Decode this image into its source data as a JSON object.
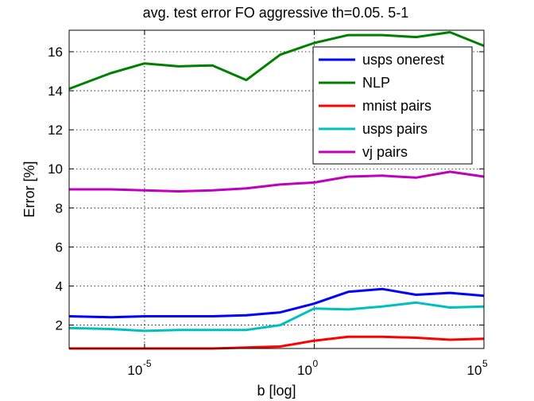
{
  "chart_data": {
    "type": "line",
    "title": "avg. test error FO aggressive th=0.05. 5-1",
    "xlabel": "b [log]",
    "ylabel": "Error [%]",
    "x_scale": "log",
    "xlim": [
      6e-08,
      100000
    ],
    "ylim": [
      0.8,
      17.1
    ],
    "grid": true,
    "legend_position": "top-right",
    "x_ticks": [
      {
        "base": "10",
        "exp": "-5",
        "value": 1e-05
      },
      {
        "base": "10",
        "exp": "0",
        "value": 1
      },
      {
        "base": "10",
        "exp": "5",
        "value": 100000
      }
    ],
    "y_ticks": [
      {
        "value": 2,
        "label": "2"
      },
      {
        "value": 4,
        "label": "4"
      },
      {
        "value": 6,
        "label": "6"
      },
      {
        "value": 8,
        "label": "8"
      },
      {
        "value": 10,
        "label": "10"
      },
      {
        "value": 12,
        "label": "12"
      },
      {
        "value": 14,
        "label": "14"
      },
      {
        "value": 16,
        "label": "16"
      }
    ],
    "x": [
      6e-08,
      1e-06,
      1e-05,
      0.0001,
      0.001,
      0.01,
      0.1,
      1,
      10,
      100,
      1000,
      10000,
      100000
    ],
    "series": [
      {
        "name": "usps onerest",
        "color": "#0000ff",
        "values": [
          2.45,
          2.4,
          2.45,
          2.45,
          2.45,
          2.5,
          2.65,
          3.1,
          3.7,
          3.85,
          3.55,
          3.65,
          3.5
        ]
      },
      {
        "name": "NLP",
        "color": "#008000",
        "values": [
          14.1,
          14.9,
          15.4,
          15.25,
          15.3,
          14.55,
          15.85,
          16.45,
          16.85,
          16.85,
          16.75,
          17.0,
          16.3
        ]
      },
      {
        "name": "mnist pairs",
        "color": "#ff0000",
        "values": [
          0.8,
          0.8,
          0.8,
          0.8,
          0.8,
          0.85,
          0.9,
          1.2,
          1.4,
          1.4,
          1.35,
          1.25,
          1.3
        ]
      },
      {
        "name": "usps pairs",
        "color": "#00bfbf",
        "values": [
          1.85,
          1.8,
          1.7,
          1.75,
          1.75,
          1.75,
          2.0,
          2.85,
          2.8,
          2.95,
          3.15,
          2.9,
          2.95
        ]
      },
      {
        "name": "vj pairs",
        "color": "#bf00bf",
        "values": [
          8.95,
          8.95,
          8.9,
          8.85,
          8.9,
          9.0,
          9.2,
          9.3,
          9.6,
          9.65,
          9.55,
          9.85,
          9.6
        ]
      }
    ]
  }
}
